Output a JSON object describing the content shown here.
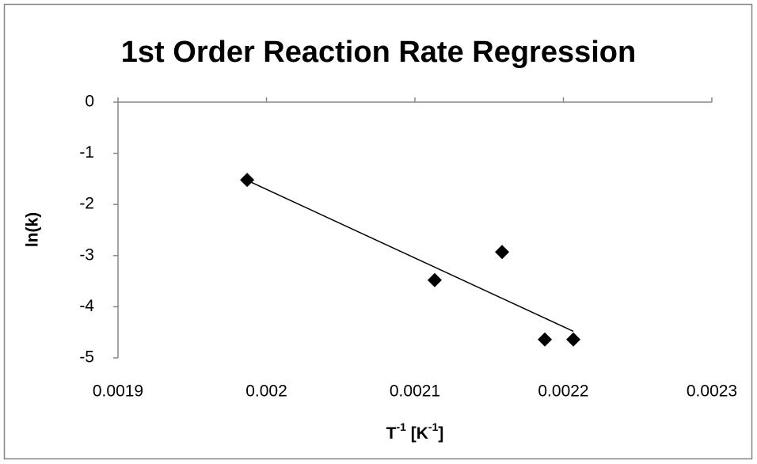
{
  "chart_data": {
    "type": "scatter",
    "title": "1st Order Reaction Rate Regression",
    "xlabel": [
      "T",
      "-1",
      " [K",
      "-1",
      "]"
    ],
    "ylabel": "ln(k)",
    "x": [
      0.001987,
      0.0021133,
      0.0021587,
      0.0021875,
      0.0022067
    ],
    "values": [
      -1.52,
      -3.48,
      -2.93,
      -4.64,
      -4.64
    ],
    "color": "#000000",
    "trendline": {
      "x": [
        0.001987,
        0.0022067
      ],
      "values": [
        -1.53,
        -4.48
      ]
    },
    "xlim": [
      0.0019,
      0.0023
    ],
    "xticks": [
      0.0019,
      0.002,
      0.0021,
      0.0022,
      0.0023
    ],
    "ylim": [
      -5,
      0
    ],
    "yticks": [
      0,
      -1,
      -2,
      -3,
      -4,
      -5
    ]
  }
}
